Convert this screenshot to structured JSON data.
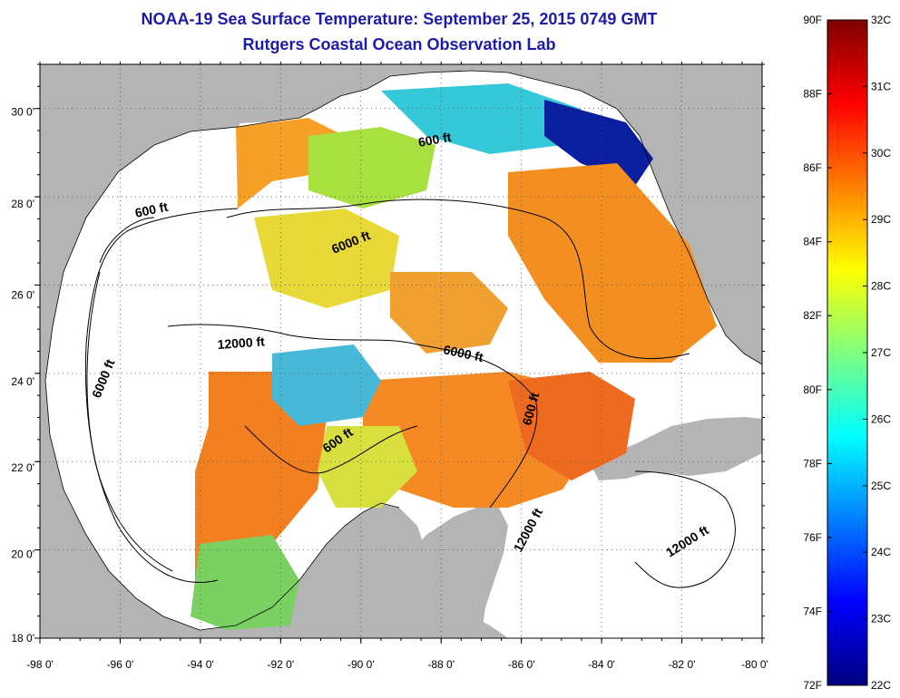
{
  "header": {
    "title": "NOAA-19 Sea Surface Temperature:  September 25, 2015 0749 GMT",
    "subtitle": "Rutgers Coastal Ocean Observation Lab"
  },
  "map": {
    "lon_range": [
      -98,
      -80
    ],
    "lat_range": [
      18,
      31
    ],
    "x_ticks": [
      "-98 0'",
      "-96 0'",
      "-94 0'",
      "-92 0'",
      "-90 0'",
      "-88 0'",
      "-86 0'",
      "-84 0'",
      "-82 0'",
      "-80 0'"
    ],
    "y_ticks": [
      "18 0'",
      "20 0'",
      "22 0'",
      "24 0'",
      "26 0'",
      "28 0'",
      "30 0'"
    ],
    "gridlines": "dotted",
    "land_color": "#b4b4b4",
    "no_data_color": "#ffffff",
    "contour_labels": [
      "600 ft",
      "600 ft",
      "600 ft",
      "600 ft",
      "6000 ft",
      "6000 ft",
      "6000 ft",
      "12000 ft",
      "12000 ft",
      "12000 ft"
    ]
  },
  "colorbar": {
    "fahrenheit_labels": [
      "90F",
      "88F",
      "86F",
      "84F",
      "82F",
      "80F",
      "78F",
      "76F",
      "74F",
      "72F"
    ],
    "celsius_labels": [
      "32C",
      "31C",
      "30C",
      "29C",
      "28C",
      "27C",
      "26C",
      "25C",
      "24C",
      "23C",
      "22C"
    ],
    "range_c": [
      22,
      32
    ],
    "colors": [
      "#00007f",
      "#0000ff",
      "#007fff",
      "#00ffff",
      "#7fff7f",
      "#ffff00",
      "#ff7f00",
      "#ff0000",
      "#7f0000"
    ]
  }
}
